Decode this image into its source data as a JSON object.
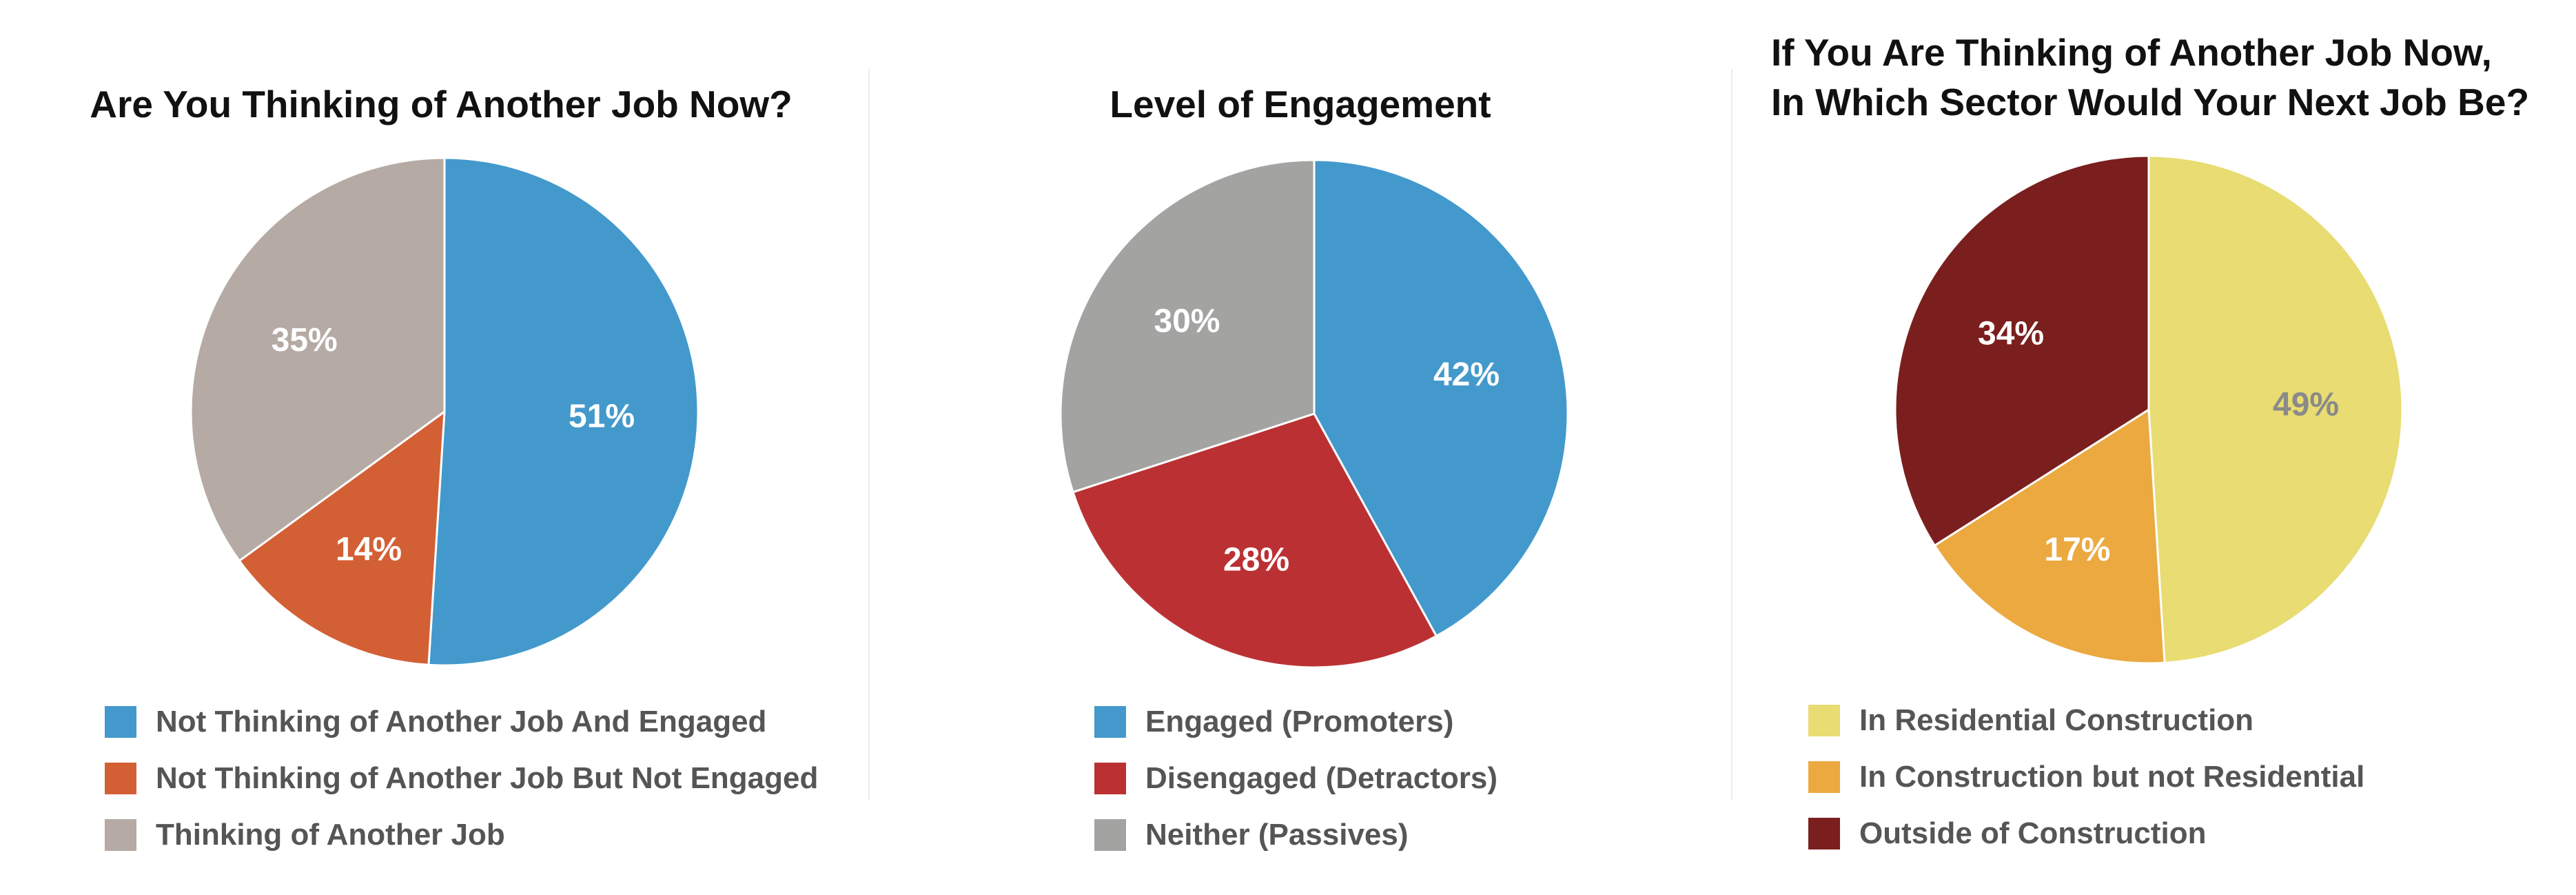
{
  "chart_data": [
    {
      "type": "pie",
      "title": "Are You Thinking of Another Job Now?",
      "labels": [
        "Not Thinking of Another Job And Engaged",
        "Not Thinking of Another Job But Not Engaged",
        "Thinking of Another Job"
      ],
      "values": [
        51,
        14,
        35
      ],
      "value_labels": [
        "51%",
        "14%",
        "35%"
      ],
      "colors": [
        "#4399cc",
        "#d35f35",
        "#b5aaa4"
      ],
      "label_colors": [
        "#ffffff",
        "#ffffff",
        "#ffffff"
      ],
      "start": "top",
      "direction": "clockwise",
      "legend": "bottom"
    },
    {
      "type": "pie",
      "title": "Level of Engagement",
      "labels": [
        "Engaged (Promoters)",
        "Disengaged (Detractors)",
        "Neither (Passives)"
      ],
      "values": [
        42,
        28,
        30
      ],
      "value_labels": [
        "42%",
        "28%",
        "30%"
      ],
      "colors": [
        "#4399cc",
        "#bb3133",
        "#a3a3a2"
      ],
      "label_colors": [
        "#ffffff",
        "#ffffff",
        "#ffffff"
      ],
      "start": "top",
      "direction": "clockwise",
      "legend": "bottom"
    },
    {
      "type": "pie",
      "title": "If You Are Thinking of Another Job Now,\nIn Which Sector Would Your Next Job Be?",
      "labels": [
        "In Residential Construction",
        "In Construction but not Residential",
        "Outside of Construction"
      ],
      "values": [
        49,
        17,
        34
      ],
      "value_labels": [
        "49%",
        "17%",
        "34%"
      ],
      "colors": [
        "#e8dc72",
        "#eba940",
        "#7a1f1e"
      ],
      "label_colors": [
        "#8a8a8a",
        "#ffffff",
        "#ffffff"
      ],
      "start": "top",
      "direction": "clockwise",
      "legend": "bottom"
    }
  ]
}
